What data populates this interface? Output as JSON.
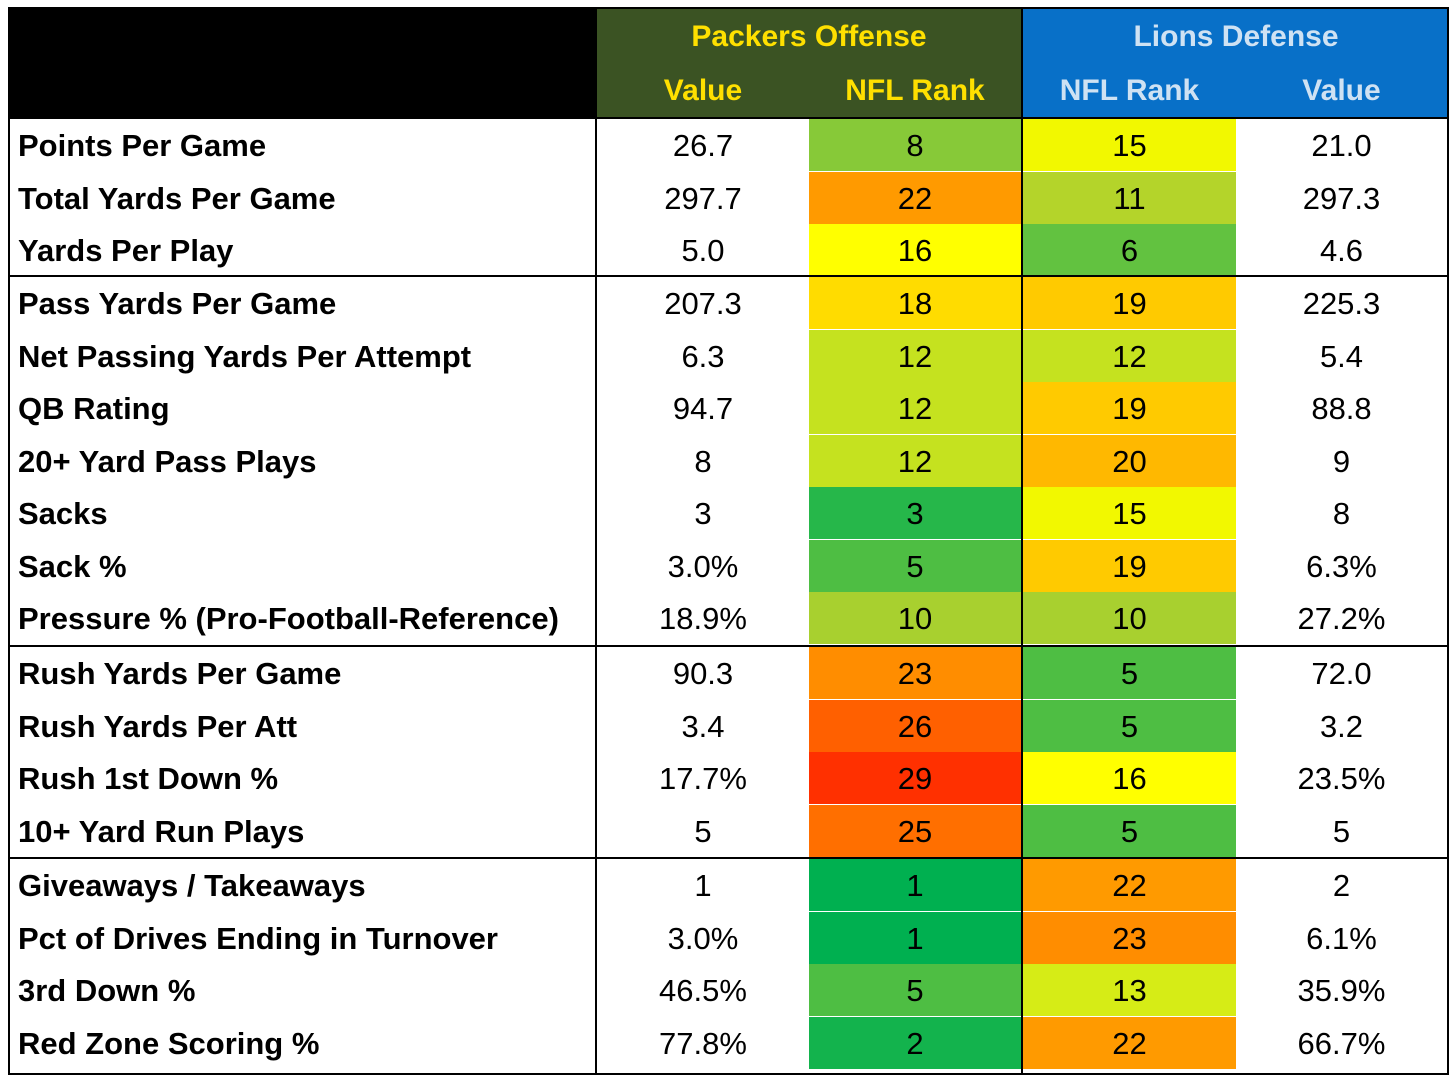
{
  "header": {
    "packers_title": "Packers Offense",
    "lions_title": "Lions Defense",
    "col_packers_value": "Value",
    "col_packers_rank": "NFL Rank",
    "col_lions_rank": "NFL Rank",
    "col_lions_value": "Value"
  },
  "colors": {
    "packers_header_bg": "#3b5323",
    "lions_header_bg": "#0870c8",
    "packers_header_text": "#ffe000",
    "lions_header_text": "#cfe2f3",
    "rank_scale": {
      "1": "#00b050",
      "2": "#13b34d",
      "3": "#26b74a",
      "4": "#3aba47",
      "5": "#4ebe43",
      "6": "#62c240",
      "7": "#74c53c",
      "8": "#87c938",
      "9": "#98cd34",
      "10": "#a8d02f",
      "11": "#b4d42a",
      "12": "#c5e21f",
      "13": "#d6ec16",
      "14": "#e6f40c",
      "15": "#f2f800",
      "16": "#ffff00",
      "17": "#ffee00",
      "18": "#ffdc00",
      "19": "#ffca00",
      "20": "#ffb800",
      "21": "#ffa800",
      "22": "#ff9a00",
      "23": "#ff8d00",
      "24": "#ff7e00",
      "25": "#ff6f00",
      "26": "#ff6000",
      "27": "#ff5000",
      "28": "#ff4000",
      "29": "#ff3000",
      "30": "#ff2000",
      "31": "#ff1000",
      "32": "#ff0000"
    }
  },
  "rows": [
    {
      "label": "Points Per Game",
      "off_value": "26.7",
      "off_rank": "8",
      "def_rank": "15",
      "def_value": "21.0"
    },
    {
      "label": "Total Yards Per Game",
      "off_value": "297.7",
      "off_rank": "22",
      "def_rank": "11",
      "def_value": "297.3"
    },
    {
      "label": "Yards Per Play",
      "off_value": "5.0",
      "off_rank": "16",
      "def_rank": "6",
      "def_value": "4.6"
    },
    {
      "label": "Pass Yards Per Game",
      "off_value": "207.3",
      "off_rank": "18",
      "def_rank": "19",
      "def_value": "225.3"
    },
    {
      "label": "Net Passing Yards Per Attempt",
      "off_value": "6.3",
      "off_rank": "12",
      "def_rank": "12",
      "def_value": "5.4"
    },
    {
      "label": "QB Rating",
      "off_value": "94.7",
      "off_rank": "12",
      "def_rank": "19",
      "def_value": "88.8"
    },
    {
      "label": "20+ Yard Pass Plays",
      "off_value": "8",
      "off_rank": "12",
      "def_rank": "20",
      "def_value": "9"
    },
    {
      "label": "Sacks",
      "off_value": "3",
      "off_rank": "3",
      "def_rank": "15",
      "def_value": "8"
    },
    {
      "label": "Sack %",
      "off_value": "3.0%",
      "off_rank": "5",
      "def_rank": "19",
      "def_value": "6.3%"
    },
    {
      "label": "Pressure % (Pro-Football-Reference)",
      "off_value": "18.9%",
      "off_rank": "10",
      "def_rank": "10",
      "def_value": "27.2%"
    },
    {
      "label": "Rush Yards Per Game",
      "off_value": "90.3",
      "off_rank": "23",
      "def_rank": "5",
      "def_value": "72.0"
    },
    {
      "label": "Rush Yards Per Att",
      "off_value": "3.4",
      "off_rank": "26",
      "def_rank": "5",
      "def_value": "3.2"
    },
    {
      "label": "Rush 1st Down %",
      "off_value": "17.7%",
      "off_rank": "29",
      "def_rank": "16",
      "def_value": "23.5%"
    },
    {
      "label": "10+ Yard Run Plays",
      "off_value": "5",
      "off_rank": "25",
      "def_rank": "5",
      "def_value": "5"
    },
    {
      "label": "Giveaways / Takeaways",
      "off_value": "1",
      "off_rank": "1",
      "def_rank": "22",
      "def_value": "2"
    },
    {
      "label": "Pct of Drives Ending in Turnover",
      "off_value": "3.0%",
      "off_rank": "1",
      "def_rank": "23",
      "def_value": "6.1%"
    },
    {
      "label": "3rd Down %",
      "off_value": "46.5%",
      "off_rank": "5",
      "def_rank": "13",
      "def_value": "35.9%"
    },
    {
      "label": "Red Zone Scoring %",
      "off_value": "77.8%",
      "off_rank": "2",
      "def_rank": "22",
      "def_value": "66.7%"
    }
  ]
}
